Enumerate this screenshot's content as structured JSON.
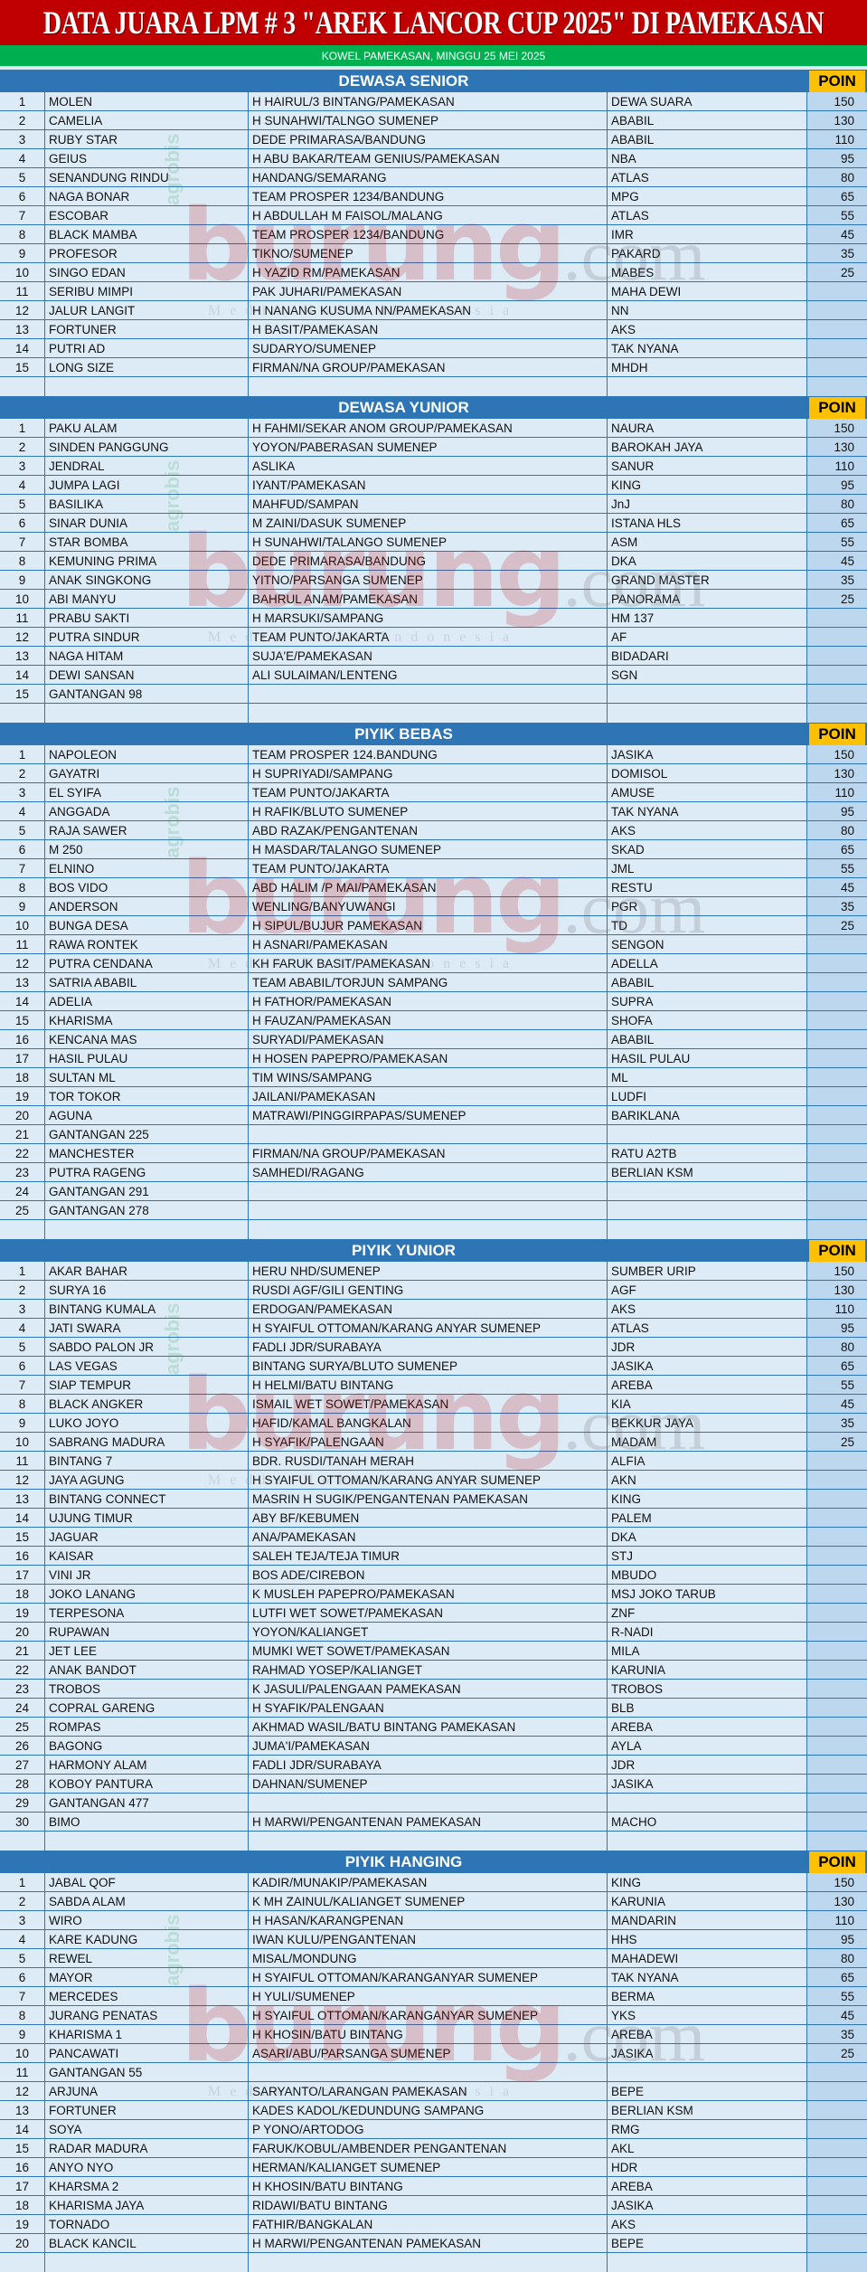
{
  "header": {
    "title": "DATA JUARA LPM # 3 \"AREK LANCOR CUP 2025\" DI  PAMEKASAN",
    "subtitle": "KOWEL  PAMEKASAN, MINGGU 25 MEI 2025"
  },
  "poin_label": "POIN",
  "watermark": {
    "brand": "burung",
    "suffix": ".com",
    "tagline": "Media Hobi Indonesia",
    "side": "agrobis"
  },
  "colors": {
    "title_bg": "#c00000",
    "subtitle_bg": "#00b050",
    "section_bg": "#2e75b6",
    "poin_bg": "#ffc000",
    "row_bg": "#ddebf7",
    "poin_col_bg": "#bdd7ee"
  },
  "sections": [
    {
      "title": "DEWASA SENIOR",
      "rows": [
        [
          "1",
          "MOLEN",
          "H HAIRUL/3 BINTANG/PAMEKASAN",
          "DEWA SUARA",
          "150"
        ],
        [
          "2",
          "CAMELIA",
          "H SUNAHWI/TALNGO SUMENEP",
          "ABABIL",
          "130"
        ],
        [
          "3",
          "RUBY STAR",
          "DEDE PRIMARASA/BANDUNG",
          "ABABIL",
          "110"
        ],
        [
          "4",
          "GEIUS",
          "H ABU BAKAR/TEAM GENIUS/PAMEKASAN",
          "NBA",
          "95"
        ],
        [
          "5",
          "SENANDUNG RINDU",
          "HANDANG/SEMARANG",
          "ATLAS",
          "80"
        ],
        [
          "6",
          "NAGA BONAR",
          "TEAM PROSPER 1234/BANDUNG",
          "MPG",
          "65"
        ],
        [
          "7",
          "ESCOBAR",
          "H ABDULLAH M FAISOL/MALANG",
          "ATLAS",
          "55"
        ],
        [
          "8",
          "BLACK MAMBA",
          "TEAM PROSPER 1234/BANDUNG",
          "IMR",
          "45"
        ],
        [
          "9",
          "PROFESOR",
          "TIKNO/SUMENEP",
          "PAKARD",
          "35"
        ],
        [
          "10",
          "SINGO EDAN",
          "H YAZID RM/PAMEKASAN",
          "MABES",
          "25"
        ],
        [
          "11",
          "SERIBU MIMPI",
          "PAK JUHARI/PAMEKASAN",
          "MAHA DEWI",
          ""
        ],
        [
          "12",
          "JALUR LANGIT",
          "H NANANG KUSUMA NN/PAMEKASAN",
          "NN",
          ""
        ],
        [
          "13",
          "FORTUNER",
          "H BASIT/PAMEKASAN",
          "AKS",
          ""
        ],
        [
          "14",
          "PUTRI AD",
          "SUDARYO/SUMENEP",
          "TAK NYANA",
          ""
        ],
        [
          "15",
          "LONG SIZE",
          "FIRMAN/NA GROUP/PAMEKASAN",
          "MHDH",
          ""
        ]
      ]
    },
    {
      "title": "DEWASA YUNIOR",
      "rows": [
        [
          "1",
          "PAKU ALAM",
          "H FAHMI/SEKAR ANOM GROUP/PAMEKASAN",
          "NAURA",
          "150"
        ],
        [
          "2",
          "SINDEN PANGGUNG",
          "YOYON/PABERASAN SUMENEP",
          "BAROKAH JAYA",
          "130"
        ],
        [
          "3",
          "JENDRAL",
          "ASLIKA",
          "SANUR",
          "110"
        ],
        [
          "4",
          "JUMPA LAGI",
          "IYANT/PAMEKASAN",
          "KING",
          "95"
        ],
        [
          "5",
          "BASILIKA",
          "MAHFUD/SAMPAN",
          "JnJ",
          "80"
        ],
        [
          "6",
          "SINAR DUNIA",
          "M ZAINI/DASUK SUMENEP",
          "ISTANA HLS",
          "65"
        ],
        [
          "7",
          "STAR BOMBA",
          "H SUNAHWI/TALANGO SUMENEP",
          "ASM",
          "55"
        ],
        [
          "8",
          "KEMUNING PRIMA",
          "DEDE PRIMARASA/BANDUNG",
          "DKA",
          "45"
        ],
        [
          "9",
          "ANAK SINGKONG",
          "YITNO/PARSANGA SUMENEP",
          "GRAND MASTER",
          "35"
        ],
        [
          "10",
          "ABI MANYU",
          "BAHRUL ANAM/PAMEKASAN",
          "PANORAMA",
          "25"
        ],
        [
          "11",
          "PRABU SAKTI",
          "H MARSUKI/SAMPANG",
          "HM 137",
          ""
        ],
        [
          "12",
          "PUTRA SINDUR",
          "TEAM PUNTO/JAKARTA",
          "AF",
          ""
        ],
        [
          "13",
          "NAGA HITAM",
          "SUJA'E/PAMEKASAN",
          "BIDADARI",
          ""
        ],
        [
          "14",
          "DEWI SANSAN",
          "ALI SULAIMAN/LENTENG",
          "SGN",
          ""
        ],
        [
          "15",
          "GANTANGAN 98",
          "",
          "",
          ""
        ]
      ]
    },
    {
      "title": "PIYIK BEBAS",
      "rows": [
        [
          "1",
          "NAPOLEON",
          "TEAM PROSPER 124.BANDUNG",
          "JASIKA",
          "150"
        ],
        [
          "2",
          "GAYATRI",
          "H SUPRIYADI/SAMPANG",
          "DOMISOL",
          "130"
        ],
        [
          "3",
          "EL SYIFA",
          "TEAM PUNTO/JAKARTA",
          "AMUSE",
          "110"
        ],
        [
          "4",
          "ANGGADA",
          "H RAFIK/BLUTO SUMENEP",
          "TAK NYANA",
          "95"
        ],
        [
          "5",
          "RAJA SAWER",
          "ABD RAZAK/PENGANTENAN",
          "AKS",
          "80"
        ],
        [
          "6",
          "M 250",
          "H MASDAR/TALANGO SUMENEP",
          "SKAD",
          "65"
        ],
        [
          "7",
          "ELNINO",
          "TEAM PUNTO/JAKARTA",
          "JML",
          "55"
        ],
        [
          "8",
          "BOS VIDO",
          "ABD HALIM /P MAI/PAMEKASAN",
          "RESTU",
          "45"
        ],
        [
          "9",
          "ANDERSON",
          "WENLING/BANYUWANGI",
          "PGR",
          "35"
        ],
        [
          "10",
          "BUNGA DESA",
          "H SIPUL/BUJUR PAMEKASAN",
          "TD",
          "25"
        ],
        [
          "11",
          "RAWA RONTEK",
          "H ASNARI/PAMEKASAN",
          "SENGON",
          ""
        ],
        [
          "12",
          "PUTRA CENDANA",
          "KH FARUK BASIT/PAMEKASAN",
          "ADELLA",
          ""
        ],
        [
          "13",
          "SATRIA ABABIL",
          "TEAM ABABIL/TORJUN SAMPANG",
          "ABABIL",
          ""
        ],
        [
          "14",
          "ADELIA",
          "H FATHOR/PAMEKASAN",
          "SUPRA",
          ""
        ],
        [
          "15",
          "KHARISMA",
          "H FAUZAN/PAMEKASAN",
          "SHOFA",
          ""
        ],
        [
          "16",
          "KENCANA MAS",
          "SURYADI/PAMEKASAN",
          "ABABIL",
          ""
        ],
        [
          "17",
          "HASIL PULAU",
          "H HOSEN PAPEPRO/PAMEKASAN",
          "HASIL PULAU",
          ""
        ],
        [
          "18",
          "SULTAN ML",
          "TIM WINS/SAMPANG",
          "ML",
          ""
        ],
        [
          "19",
          "TOR TOKOR",
          "JAILANI/PAMEKASAN",
          "LUDFI",
          ""
        ],
        [
          "20",
          "AGUNA",
          "MATRAWI/PINGGIRPAPAS/SUMENEP",
          "BARIKLANA",
          ""
        ],
        [
          "21",
          "GANTANGAN 225",
          "",
          "",
          ""
        ],
        [
          "22",
          "MANCHESTER",
          "FIRMAN/NA GROUP/PAMEKASAN",
          "RATU A2TB",
          ""
        ],
        [
          "23",
          "PUTRA RAGENG",
          "SAMHEDI/RAGANG",
          "BERLIAN KSM",
          ""
        ],
        [
          "24",
          "GANTANGAN 291",
          "",
          "",
          ""
        ],
        [
          "25",
          "GANTANGAN 278",
          "",
          "",
          ""
        ]
      ]
    },
    {
      "title": "PIYIK YUNIOR",
      "rows": [
        [
          "1",
          "AKAR BAHAR",
          "HERU NHD/SUMENEP",
          "SUMBER URIP",
          "150"
        ],
        [
          "2",
          "SURYA 16",
          "RUSDI AGF/GILI GENTING",
          "AGF",
          "130"
        ],
        [
          "3",
          "BINTANG KUMALA",
          "ERDOGAN/PAMEKASAN",
          "AKS",
          "110"
        ],
        [
          "4",
          "JATI SWARA",
          "H SYAIFUL OTTOMAN/KARANG ANYAR SUMENEP",
          "ATLAS",
          "95"
        ],
        [
          "5",
          "SABDO PALON JR",
          "FADLI JDR/SURABAYA",
          "JDR",
          "80"
        ],
        [
          "6",
          "LAS VEGAS",
          "BINTANG SURYA/BLUTO SUMENEP",
          "JASIKA",
          "65"
        ],
        [
          "7",
          "SIAP TEMPUR",
          "H HELMI/BATU BINTANG",
          "AREBA",
          "55"
        ],
        [
          "8",
          "BLACK ANGKER",
          "ISMAIL WET SOWET/PAMEKASAN",
          "KIA",
          "45"
        ],
        [
          "9",
          "LUKO JOYO",
          "HAFID/KAMAL BANGKALAN",
          "BEKKUR JAYA",
          "35"
        ],
        [
          "10",
          "SABRANG MADURA",
          "H SYAFIK/PALENGAAN",
          "MADAM",
          "25"
        ],
        [
          "11",
          "BINTANG 7",
          "BDR. RUSDI/TANAH MERAH",
          "ALFIA",
          ""
        ],
        [
          "12",
          "JAYA AGUNG",
          "H SYAIFUL OTTOMAN/KARANG ANYAR SUMENEP",
          "AKN",
          ""
        ],
        [
          "13",
          "BINTANG CONNECT",
          "MASRIN H SUGIK/PENGANTENAN PAMEKASAN",
          "KING",
          ""
        ],
        [
          "14",
          "UJUNG TIMUR",
          "ABY BF/KEBUMEN",
          "PALEM",
          ""
        ],
        [
          "15",
          "JAGUAR",
          "ANA/PAMEKASAN",
          "DKA",
          ""
        ],
        [
          "16",
          "KAISAR",
          "SALEH TEJA/TEJA TIMUR",
          "STJ",
          ""
        ],
        [
          "17",
          "VINI JR",
          "BOS ADE/CIREBON",
          "MBUDO",
          ""
        ],
        [
          "18",
          "JOKO LANANG",
          "K MUSLEH PAPEPRO/PAMEKASAN",
          "MSJ JOKO TARUB",
          ""
        ],
        [
          "19",
          "TERPESONA",
          "LUTFI WET SOWET/PAMEKASAN",
          "ZNF",
          ""
        ],
        [
          "20",
          "RUPAWAN",
          "YOYON/KALIANGET",
          "R-NADI",
          ""
        ],
        [
          "21",
          "JET LEE",
          "MUMKI WET SOWET/PAMEKASAN",
          "MILA",
          ""
        ],
        [
          "22",
          "ANAK BANDOT",
          "RAHMAD YOSEP/KALIANGET",
          "KARUNIA",
          ""
        ],
        [
          "23",
          "TROBOS",
          "K JASULI/PALENGAAN PAMEKASAN",
          "TROBOS",
          ""
        ],
        [
          "24",
          "COPRAL GARENG",
          "H SYAFIK/PALENGAAN",
          "BLB",
          ""
        ],
        [
          "25",
          "ROMPAS",
          "AKHMAD WASIL/BATU BINTANG PAMEKASAN",
          "AREBA",
          ""
        ],
        [
          "26",
          "BAGONG",
          "JUMA'I/PAMEKASAN",
          "AYLA",
          ""
        ],
        [
          "27",
          "HARMONY ALAM",
          "FADLI JDR/SURABAYA",
          "JDR",
          ""
        ],
        [
          "28",
          "KOBOY PANTURA",
          "DAHNAN/SUMENEP",
          "JASIKA",
          ""
        ],
        [
          "29",
          "GANTANGAN 477",
          "",
          "",
          ""
        ],
        [
          "30",
          "BIMO",
          "H MARWI/PENGANTENAN PAMEKASAN",
          "MACHO",
          ""
        ]
      ]
    },
    {
      "title": "PIYIK HANGING",
      "rows": [
        [
          "1",
          "JABAL QOF",
          "KADIR/MUNAKIP/PAMEKASAN",
          "KING",
          "150"
        ],
        [
          "2",
          "SABDA ALAM",
          "K MH ZAINUL/KALIANGET SUMENEP",
          "KARUNIA",
          "130"
        ],
        [
          "3",
          "WIRO",
          "H HASAN/KARANGPENAN",
          "MANDARIN",
          "110"
        ],
        [
          "4",
          "KARE KADUNG",
          "IWAN KULU/PENGANTENAN",
          "HHS",
          "95"
        ],
        [
          "5",
          "REWEL",
          "MISAL/MONDUNG",
          "MAHADEWI",
          "80"
        ],
        [
          "6",
          "MAYOR",
          "H SYAIFUL OTTOMAN/KARANGANYAR SUMENEP",
          "TAK NYANA",
          "65"
        ],
        [
          "7",
          "MERCEDES",
          "H YULI/SUMENEP",
          "BERMA",
          "55"
        ],
        [
          "8",
          "JURANG PENATAS",
          "H SYAIFUL OTTOMAN/KARANGANYAR SUMENEP",
          "YKS",
          "45"
        ],
        [
          "9",
          "KHARISMA 1",
          "H KHOSIN/BATU BINTANG",
          "AREBA",
          "35"
        ],
        [
          "10",
          "PANCAWATI",
          "ASARI/ABU/PARSANGA SUMENEP",
          "JASIKA",
          "25"
        ],
        [
          "11",
          "GANTANGAN 55",
          "",
          "",
          ""
        ],
        [
          "12",
          "ARJUNA",
          "SARYANTO/LARANGAN PAMEKASAN",
          "BEPE",
          ""
        ],
        [
          "13",
          "FORTUNER",
          "KADES KADOL/KEDUNDUNG SAMPANG",
          "BERLIAN KSM",
          ""
        ],
        [
          "14",
          "SOYA",
          "P YONO/ARTODOG",
          "RMG",
          ""
        ],
        [
          "15",
          "RADAR MADURA",
          "FARUK/KOBUL/AMBENDER PENGANTENAN",
          "AKL",
          ""
        ],
        [
          "16",
          "ANYO NYO",
          "HERMAN/KALIANGET SUMENEP",
          "HDR",
          ""
        ],
        [
          "17",
          "KHARSMA 2",
          "H KHOSIN/BATU BINTANG",
          "AREBA",
          ""
        ],
        [
          "18",
          "KHARISMA JAYA",
          "RIDAWI/BATU BINTANG",
          "JASIKA",
          ""
        ],
        [
          "19",
          "TORNADO",
          "FATHIR/BANGKALAN",
          "AKS",
          ""
        ],
        [
          "20",
          "BLACK KANCIL",
          "H MARWI/PENGANTENAN PAMEKASAN",
          "BEPE",
          ""
        ]
      ]
    }
  ]
}
